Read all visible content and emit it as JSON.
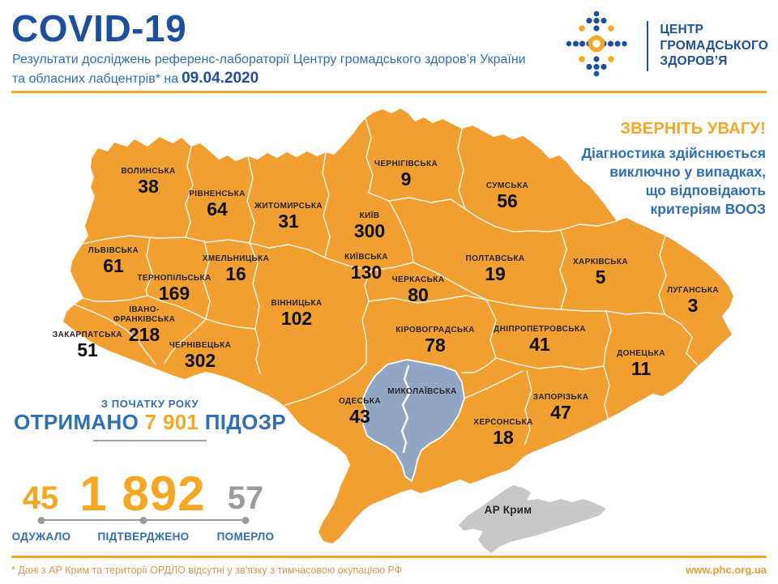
{
  "header": {
    "title": "COVID-19",
    "subtitle_line1": "Результати досліджень референс-лабораторії Центру громадського здоров’я України",
    "subtitle_line2_prefix": "та обласних лабцентрів* на",
    "date": "09.04.2020"
  },
  "logo": {
    "line1": "ЦЕНТР",
    "line2": "ГРОМАДСЬКОГО",
    "line3": "ЗДОРОВ’Я"
  },
  "notice": {
    "heading": "ЗВЕРНІТЬ УВАГУ!",
    "lines": [
      "Діагностика здійснюється",
      "виключно у випадках,",
      "що відповідають",
      "критеріям ВООЗ"
    ]
  },
  "map": {
    "regions": [
      {
        "id": "volyn",
        "name": "ВОЛИНСЬКА",
        "value": "38"
      },
      {
        "id": "rivne",
        "name": "РІВНЕНСЬКА",
        "value": "64"
      },
      {
        "id": "zhytomyr",
        "name": "ЖИТОМИРСЬКА",
        "value": "31"
      },
      {
        "id": "chernihiv",
        "name": "ЧЕРНІГІВСЬКА",
        "value": "9"
      },
      {
        "id": "kyiv-city",
        "name": "КИЇВ",
        "value": "300"
      },
      {
        "id": "sumy",
        "name": "СУМСЬКА",
        "value": "56"
      },
      {
        "id": "lviv",
        "name": "ЛЬВІВСЬКА",
        "value": "61"
      },
      {
        "id": "khmelnytska",
        "name": "ХМЕЛЬНИЦЬКА",
        "value": "16"
      },
      {
        "id": "kyivska",
        "name": "КИЇВСЬКА",
        "value": "130"
      },
      {
        "id": "ternopil",
        "name": "ТЕРНОПІЛЬСЬКА",
        "value": "169"
      },
      {
        "id": "poltava",
        "name": "ПОЛТАВСЬКА",
        "value": "19"
      },
      {
        "id": "kharkiv",
        "name": "ХАРКІВСЬКА",
        "value": "5"
      },
      {
        "id": "luhansk",
        "name": "ЛУГАНСЬКА",
        "value": "3"
      },
      {
        "id": "ivano",
        "name": "ІВАНО-\nФРАНКІВСЬКА",
        "value": "218"
      },
      {
        "id": "vinnytsia",
        "name": "ВІННИЦЬКА",
        "value": "102"
      },
      {
        "id": "cherkasy",
        "name": "ЧЕРКАСЬКА",
        "value": "80"
      },
      {
        "id": "zakarpattia",
        "name": "ЗАКАРПАТСЬКА",
        "value": "51"
      },
      {
        "id": "chernivtsi",
        "name": "ЧЕРНІВЕЦЬКА",
        "value": "302"
      },
      {
        "id": "kirovohrad",
        "name": "КІРОВОГРАДСЬКА",
        "value": "78"
      },
      {
        "id": "dnipro",
        "name": "ДНІПРОПЕТРОВСЬКА",
        "value": "41"
      },
      {
        "id": "donetsk",
        "name": "ДОНЕЦЬКА",
        "value": "11"
      },
      {
        "id": "odesa",
        "name": "ОДЕСЬКА",
        "value": "43"
      },
      {
        "id": "mykolaivska",
        "name": "МИКОЛАЇВСЬКА",
        "value": null
      },
      {
        "id": "zaporizhzhia",
        "name": "ЗАПОРІЗЬКА",
        "value": "47"
      },
      {
        "id": "kherson",
        "name": "ХЕРСОНСЬКА",
        "value": "18"
      },
      {
        "id": "crimea",
        "name": "АР Крим",
        "value": null
      }
    ]
  },
  "stats": {
    "period_label": "З ПОЧАТКУ РОКУ",
    "received_prefix": "ОТРИМАНО",
    "received_value": "7 901",
    "received_suffix": "ПІДОЗР",
    "items": [
      {
        "value": "45",
        "label": "ОДУЖАЛО"
      },
      {
        "value": "1 892",
        "label": "ПІДТВЕРДЖЕНО"
      },
      {
        "value": "57",
        "label": "ПОМЕРЛО"
      }
    ]
  },
  "footer": {
    "note": "* Дані з АР Крим та території ОРДЛО відсутні у зв’язку з тимчасовою окупацією РФ",
    "url": "www.phc.org.ua"
  },
  "colors": {
    "accent_orange": "#f5a623",
    "navy": "#1d4f9c",
    "blue": "#2e6fb5",
    "map_orange": "#f19f31",
    "no_data_blue_gray": "#8fa6c4",
    "crimea_gray": "#c8c8c8",
    "stat_gray": "#9b9b9b"
  }
}
